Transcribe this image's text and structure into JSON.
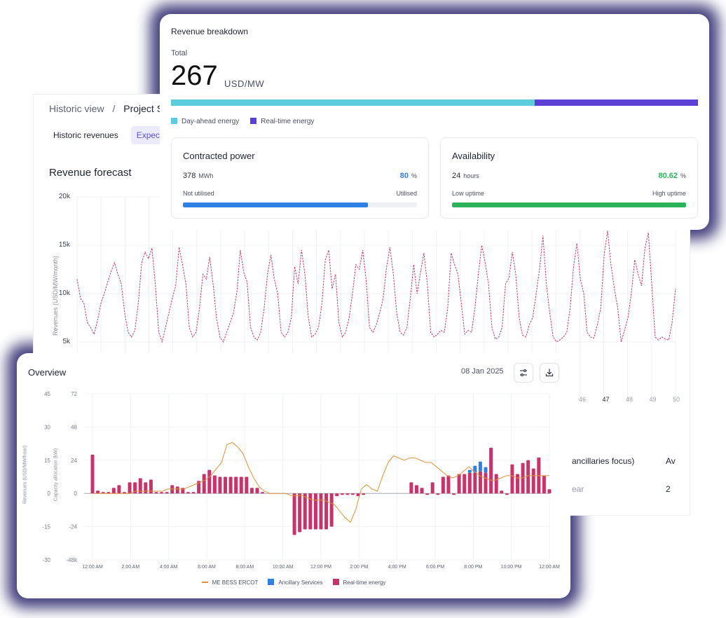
{
  "background_panel": {
    "breadcrumb": {
      "parent": "Historic view",
      "separator": "/",
      "current": "Project Ser"
    },
    "tabs": [
      {
        "label": "Historic revenues"
      },
      {
        "label": "Expecte"
      }
    ],
    "title": "Revenue forecast",
    "ylabel": "Revenues (USD/MW/month)",
    "yticks": [
      "20k",
      "15k",
      "10k",
      "5k"
    ],
    "xticks": [
      "46",
      "47",
      "48",
      "49",
      "50"
    ],
    "table": {
      "header_1": "ancillaries focus)",
      "header_2": "Av",
      "cell_1": "ear",
      "cell_2": "2"
    }
  },
  "revenue_breakdown": {
    "title": "Revenue breakdown",
    "total_label": "Total",
    "total_value": "267",
    "total_unit": "USD/MW",
    "day_ahead_share": 0.69,
    "legend": [
      {
        "label": "Day-ahead energy",
        "color": "#5ccbdc"
      },
      {
        "label": "Real-time energy",
        "color": "#5b3fd6"
      }
    ],
    "contracted_power": {
      "title": "Contracted power",
      "value": "378",
      "value_unit": "MWh",
      "percent": "80",
      "percent_unit": "%",
      "left_label": "Not utilised",
      "right_label": "Utilised",
      "fill_fraction": 0.79,
      "color": "#2f80e3",
      "percent_color": "#2f80e3"
    },
    "availability": {
      "title": "Availability",
      "value": "24",
      "value_unit": "hours",
      "percent": "80.62",
      "percent_unit": "%",
      "left_label": "Low uptime",
      "right_label": "High uptime",
      "fill_fraction": 1.0,
      "color": "#2bb25a",
      "percent_color": "#2bb25a"
    }
  },
  "overview": {
    "title": "Overview",
    "date": "08 Jan 2025",
    "filter_button_icon": "sliders-icon",
    "download_button_icon": "download-icon",
    "left_axis_label": "Revenues (USD/MW/hour)",
    "right_axis_label": "Capacity allocation (kW)",
    "left_ticks": [
      "45",
      "30",
      "15",
      "0",
      "-15",
      "-30"
    ],
    "right_ticks": [
      "72",
      "48",
      "24",
      "0",
      "-24",
      "-48k"
    ],
    "x_ticks": [
      "12:00 AM",
      "2:00 AM",
      "4:00 AM",
      "6:00 AM",
      "8:00 AM",
      "10:00 AM",
      "12:00 PM",
      "2:00 PM",
      "4:00 PM",
      "6:00 PM",
      "8:00 PM",
      "10:00 PM",
      "12:00 AM"
    ],
    "legend": [
      {
        "label": "ME BESS ERCOT",
        "color": "#e0913a"
      },
      {
        "label": "Ancillary Services",
        "color": "#2f80e3"
      },
      {
        "label": "Real-time energy",
        "color": "#c8336a"
      }
    ]
  },
  "chart_data": [
    {
      "type": "line",
      "title": "Revenue forecast",
      "ylabel": "Revenues (USD/MW/month)",
      "ylim": [
        0,
        20000
      ],
      "series": [
        {
          "values": [
            11500,
            9500,
            9000,
            7000,
            6500,
            5800,
            7200,
            9000,
            10000,
            11200,
            12300,
            13200,
            12000,
            11000,
            8000,
            6000,
            5500,
            6200,
            9000,
            13200,
            14300,
            13600,
            14700,
            11000,
            6000,
            5000,
            6500,
            8000,
            9500,
            10800,
            14800,
            13000,
            11000,
            6500,
            5500,
            6000,
            8500,
            12000,
            11500,
            13800,
            11000,
            7500,
            5500,
            5000,
            6000,
            7000,
            8000,
            10200,
            14500,
            12200,
            11200,
            6500,
            5500,
            5200,
            6000,
            8500,
            12000,
            14000,
            11500,
            10000,
            6000,
            5500,
            6000,
            7500,
            12800,
            11000,
            14500,
            12000,
            7500,
            5500,
            5800,
            6500,
            9000,
            13500,
            14500,
            10500,
            12000,
            7000,
            5500,
            6000,
            7500,
            10000,
            13000,
            12500,
            14500,
            11500,
            6500,
            6000,
            6800,
            8000,
            9500,
            12700,
            14800,
            12000,
            8000,
            6000,
            5700,
            6500,
            9500,
            13000,
            10000,
            12200,
            14200,
            11000,
            6000,
            5500,
            5800,
            6200,
            6000,
            8500,
            14200,
            13000,
            12000,
            9000,
            5800,
            6200,
            6000,
            8500,
            12000,
            15000,
            13200,
            11000,
            6500,
            5300,
            5500,
            6500,
            11000,
            11600,
            14300,
            12000,
            7500,
            5700,
            5500,
            6800,
            7500,
            10000,
            12500,
            16000,
            11000,
            8000,
            5500,
            5000,
            5200,
            5500,
            6000,
            8500,
            12800,
            15200,
            11500,
            10000,
            6000,
            5500,
            5400,
            6800,
            8500,
            14000,
            16500,
            13000,
            10500,
            8500,
            5000,
            6200,
            7500,
            10000,
            13500,
            12000,
            10800,
            14700,
            16300,
            11000,
            5500,
            5200,
            5500,
            5300,
            5200,
            7000,
            10500
          ]
        }
      ]
    },
    {
      "type": "bar",
      "title": "Overview",
      "x_range": [
        "12:00 AM",
        "12:00 AM"
      ],
      "left_axis": {
        "label": "Revenues (USD/MW/hour)",
        "range": [
          -30,
          45
        ]
      },
      "right_axis": {
        "label": "Capacity allocation (kW)",
        "range": [
          -48,
          72
        ]
      },
      "series": [
        {
          "name": "Real-time energy",
          "axis": "right",
          "values": [
            28,
            2,
            1,
            1,
            4,
            6,
            1,
            8,
            8,
            11,
            8,
            10,
            1,
            1,
            1,
            6,
            5,
            4,
            1,
            1,
            9,
            14,
            17,
            13,
            12,
            12,
            12,
            12,
            12,
            12,
            4,
            4,
            1,
            0,
            0,
            0,
            0,
            0,
            -30,
            -28,
            -26,
            -26,
            -26,
            -26,
            -26,
            -24,
            -2,
            -1,
            -1,
            -1,
            -2,
            -1,
            0,
            0,
            0,
            0,
            0,
            0,
            0,
            0,
            8,
            6,
            4,
            -1,
            8,
            -1,
            12,
            13,
            -1,
            14,
            14,
            15,
            15,
            16,
            15,
            33,
            14,
            2,
            -1,
            21,
            14,
            22,
            24,
            18,
            26,
            13,
            3
          ],
          "ancillary_overlay": [
            0,
            0,
            0,
            0,
            0,
            0,
            0,
            0,
            0,
            0,
            0,
            0,
            0,
            0,
            0,
            0,
            0,
            0,
            0,
            0,
            0,
            0,
            0,
            0,
            0,
            0,
            0,
            0,
            0,
            0,
            0,
            0,
            0,
            0,
            0,
            0,
            0,
            0,
            0,
            0,
            0,
            0,
            0,
            0,
            0,
            0,
            0,
            0,
            0,
            0,
            0,
            0,
            0,
            0,
            0,
            0,
            0,
            0,
            0,
            0,
            0,
            0,
            0,
            0,
            0,
            0,
            0,
            0,
            0,
            0,
            0,
            2,
            5,
            7,
            4,
            0,
            0,
            0,
            0,
            0,
            0,
            0,
            0,
            0,
            0,
            0,
            0
          ]
        },
        {
          "name": "ME BESS ERCOT",
          "axis": "left",
          "values": [
            0,
            0,
            0,
            0,
            0,
            0,
            0,
            0,
            1,
            1,
            1,
            1,
            1,
            1,
            2,
            2,
            2,
            2,
            3,
            4,
            5,
            6,
            8,
            11,
            14,
            22,
            23,
            21,
            18,
            12,
            7,
            3,
            1,
            0,
            0,
            0,
            0,
            -1,
            -1,
            -1,
            -2,
            -3,
            -3,
            -3,
            -4,
            -5,
            -8,
            -11,
            -13,
            -7,
            2,
            4,
            2,
            1,
            8,
            14,
            17,
            16,
            15,
            16,
            16,
            15,
            14,
            14,
            12,
            10,
            8,
            7,
            8,
            10,
            12,
            10,
            8,
            7,
            6,
            6,
            7,
            8,
            8,
            7,
            7,
            8,
            8,
            8,
            8,
            8
          ]
        }
      ]
    }
  ]
}
